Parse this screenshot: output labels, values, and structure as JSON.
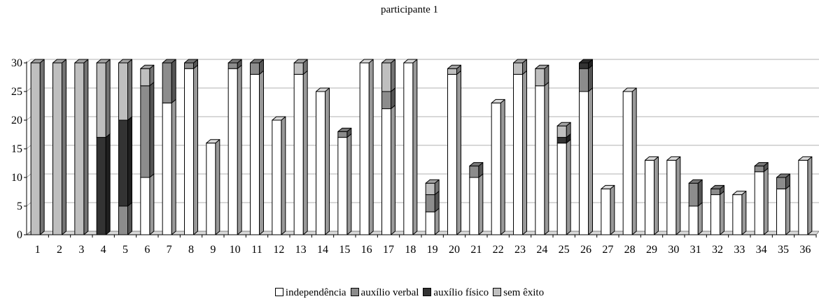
{
  "chart_data": {
    "type": "bar",
    "stacked": true,
    "style": "3d",
    "title": "participante 1",
    "categories": [
      "1",
      "2",
      "3",
      "4",
      "5",
      "6",
      "7",
      "8",
      "9",
      "10",
      "11",
      "12",
      "13",
      "14",
      "15",
      "16",
      "17",
      "18",
      "19",
      "20",
      "21",
      "22",
      "23",
      "24",
      "25",
      "26",
      "27",
      "28",
      "29",
      "30",
      "31",
      "32",
      "33",
      "34",
      "35",
      "36"
    ],
    "series": [
      {
        "name": "independência",
        "color": "#ffffff",
        "values": [
          0,
          0,
          0,
          0,
          0,
          10,
          23,
          29,
          16,
          29,
          28,
          20,
          28,
          25,
          17,
          30,
          22,
          30,
          4,
          28,
          10,
          23,
          28,
          26,
          16,
          25,
          8,
          25,
          13,
          13,
          5,
          7,
          7,
          11,
          8,
          13
        ]
      },
      {
        "name": "auxílio verbal",
        "color": "#8c8c8c",
        "values": [
          0,
          0,
          0,
          0,
          5,
          16,
          7,
          1,
          0,
          1,
          2,
          0,
          0,
          0,
          1,
          0,
          3,
          0,
          3,
          0,
          2,
          0,
          0,
          0,
          0,
          4,
          0,
          0,
          0,
          0,
          4,
          1,
          0,
          1,
          2,
          0
        ]
      },
      {
        "name": "auxílio físico",
        "color": "#333333",
        "values": [
          0,
          0,
          0,
          17,
          15,
          0,
          0,
          0,
          0,
          0,
          0,
          0,
          0,
          0,
          0,
          0,
          0,
          0,
          0,
          0,
          0,
          0,
          0,
          0,
          1,
          1,
          0,
          0,
          0,
          0,
          0,
          0,
          0,
          0,
          0,
          0
        ]
      },
      {
        "name": "sem êxito",
        "color": "#bfbfbf",
        "values": [
          30,
          30,
          30,
          13,
          10,
          3,
          0,
          0,
          0,
          0,
          0,
          0,
          2,
          0,
          0,
          0,
          5,
          0,
          2,
          1,
          0,
          0,
          2,
          3,
          2,
          0,
          0,
          0,
          0,
          0,
          0,
          0,
          0,
          0,
          0,
          0
        ]
      }
    ],
    "y_ticks": [
      0,
      5,
      10,
      15,
      20,
      25,
      30
    ],
    "ylim": [
      0,
      30
    ],
    "grid": true,
    "legend_position": "bottom"
  }
}
